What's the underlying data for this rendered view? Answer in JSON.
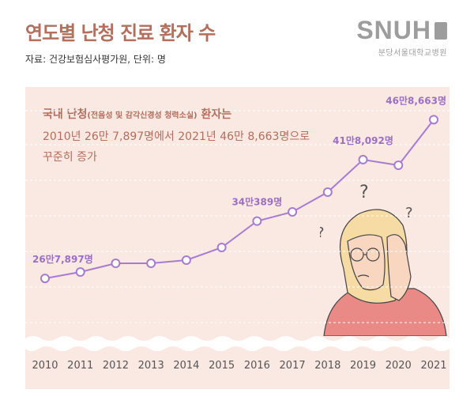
{
  "header": {
    "title": "연도별 난청 진료 환자 수",
    "source": "자료: 건강보험심사평가원, 단위: 명"
  },
  "logo": {
    "main": "SNUH",
    "sub": "분당서울대학교병원"
  },
  "description": {
    "line1_prefix": "국내 난청",
    "line1_paren": "(전음성 및 감각신경성 청력소실)",
    "line1_suffix": " 환자는",
    "line2": "2010년 26만 7,897명에서 2021년 46만 8,663명으로",
    "line3": "꾸준히 증가"
  },
  "chart_data": {
    "type": "line",
    "title": "연도별 난청 진료 환자 수",
    "x": [
      "2010",
      "2011",
      "2012",
      "2013",
      "2014",
      "2015",
      "2016",
      "2017",
      "2018",
      "2019",
      "2020",
      "2021"
    ],
    "series": [
      {
        "values": [
          267897,
          276000,
          287000,
          287000,
          291000,
          307000,
          340389,
          352000,
          377000,
          418092,
          411000,
          468663
        ]
      }
    ],
    "data_labels": [
      {
        "index": 0,
        "text": "26만7,897명"
      },
      {
        "index": 6,
        "text": "34만389명"
      },
      {
        "index": 9,
        "text": "41만8,092명"
      },
      {
        "index": 11,
        "text": "46만8,663명"
      }
    ],
    "ylim": [
      180000,
      480000
    ],
    "grid": true,
    "colors": {
      "line": "#a77bd1",
      "label": "#9b6fc4",
      "grid": "#ffffff",
      "panel": "#fae8e3"
    }
  }
}
